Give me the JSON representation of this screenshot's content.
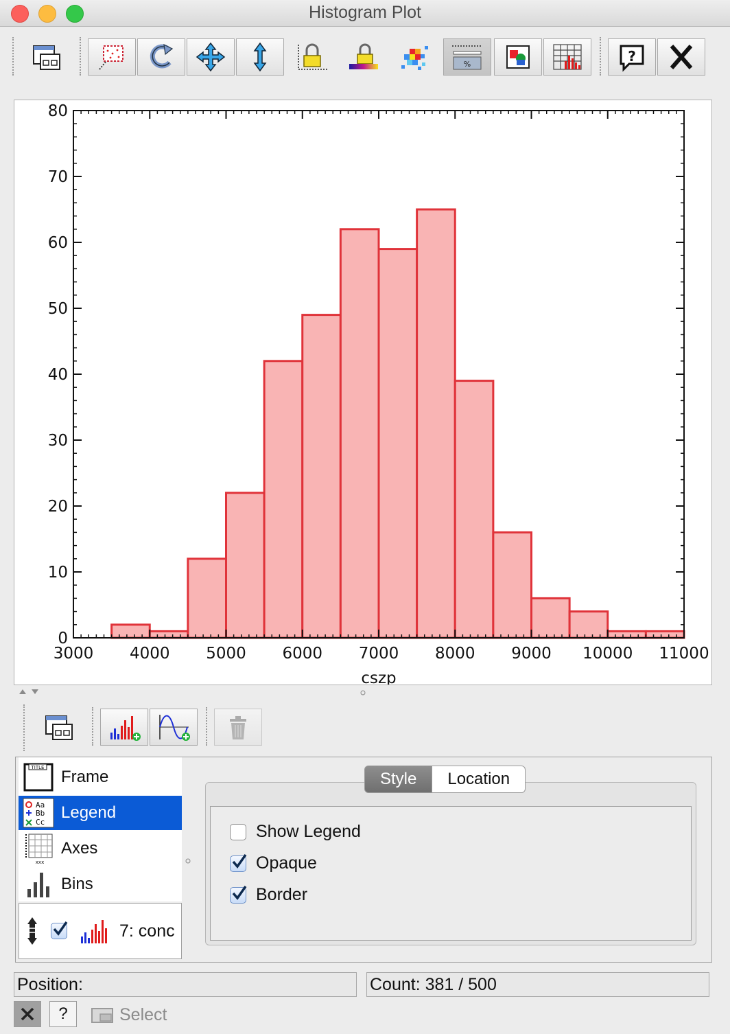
{
  "window": {
    "title": "Histogram Plot"
  },
  "toolbar": {
    "buttons": [
      {
        "icon": "window-icon"
      },
      {
        "icon": "subset-select-icon"
      },
      {
        "icon": "rescale-icon"
      },
      {
        "icon": "pan-icon"
      },
      {
        "icon": "vertical-zoom-icon"
      },
      {
        "icon": "lock-axes-icon"
      },
      {
        "icon": "lock-aux-icon"
      },
      {
        "icon": "density-map-icon"
      },
      {
        "icon": "cumulative-icon"
      },
      {
        "icon": "export-icon"
      },
      {
        "icon": "bin-table-icon"
      },
      {
        "icon": "help-icon"
      },
      {
        "icon": "close-icon"
      }
    ]
  },
  "chart_data": {
    "type": "bar",
    "xlabel": "cszp",
    "ylabel": "",
    "xlim": [
      3000,
      11000
    ],
    "ylim": [
      0,
      80
    ],
    "x_ticks": [
      "3000",
      "4000",
      "5000",
      "6000",
      "7000",
      "8000",
      "9000",
      "10000",
      "11000"
    ],
    "y_ticks": [
      "0",
      "10",
      "20",
      "30",
      "40",
      "50",
      "60",
      "70",
      "80"
    ],
    "bin_width": 500,
    "bins": [
      {
        "start": 3500,
        "end": 4000,
        "count": 2
      },
      {
        "start": 4000,
        "end": 4500,
        "count": 1
      },
      {
        "start": 4500,
        "end": 5000,
        "count": 12
      },
      {
        "start": 5000,
        "end": 5500,
        "count": 22
      },
      {
        "start": 5500,
        "end": 6000,
        "count": 42
      },
      {
        "start": 6000,
        "end": 6500,
        "count": 49
      },
      {
        "start": 6500,
        "end": 7000,
        "count": 62
      },
      {
        "start": 7000,
        "end": 7500,
        "count": 59
      },
      {
        "start": 7500,
        "end": 8000,
        "count": 65
      },
      {
        "start": 8000,
        "end": 8500,
        "count": 39
      },
      {
        "start": 8500,
        "end": 9000,
        "count": 16
      },
      {
        "start": 9000,
        "end": 9500,
        "count": 6
      },
      {
        "start": 9500,
        "end": 10000,
        "count": 4
      },
      {
        "start": 10000,
        "end": 10500,
        "count": 1
      },
      {
        "start": 10500,
        "end": 11000,
        "count": 1
      }
    ],
    "fill_color": "#f9b4b4",
    "stroke_color": "#e0333a",
    "grid": false,
    "legend": false
  },
  "nav": {
    "items": [
      {
        "label": "Frame",
        "icon": "frame-icon"
      },
      {
        "label": "Legend",
        "icon": "legend-icon",
        "selected": true
      },
      {
        "label": "Axes",
        "icon": "axes-icon"
      },
      {
        "label": "Bins",
        "icon": "bins-icon"
      }
    ],
    "layer_label": "7: conc"
  },
  "tabs": {
    "style": "Style",
    "location": "Location"
  },
  "legend_options": {
    "show_legend": {
      "label": "Show Legend",
      "checked": false
    },
    "opaque": {
      "label": "Opaque",
      "checked": true
    },
    "border": {
      "label": "Border",
      "checked": true
    }
  },
  "status": {
    "position_label": "Position:",
    "count_label": "Count: 381 / 500"
  },
  "bottom": {
    "help_label": "?",
    "select_label": "Select"
  }
}
